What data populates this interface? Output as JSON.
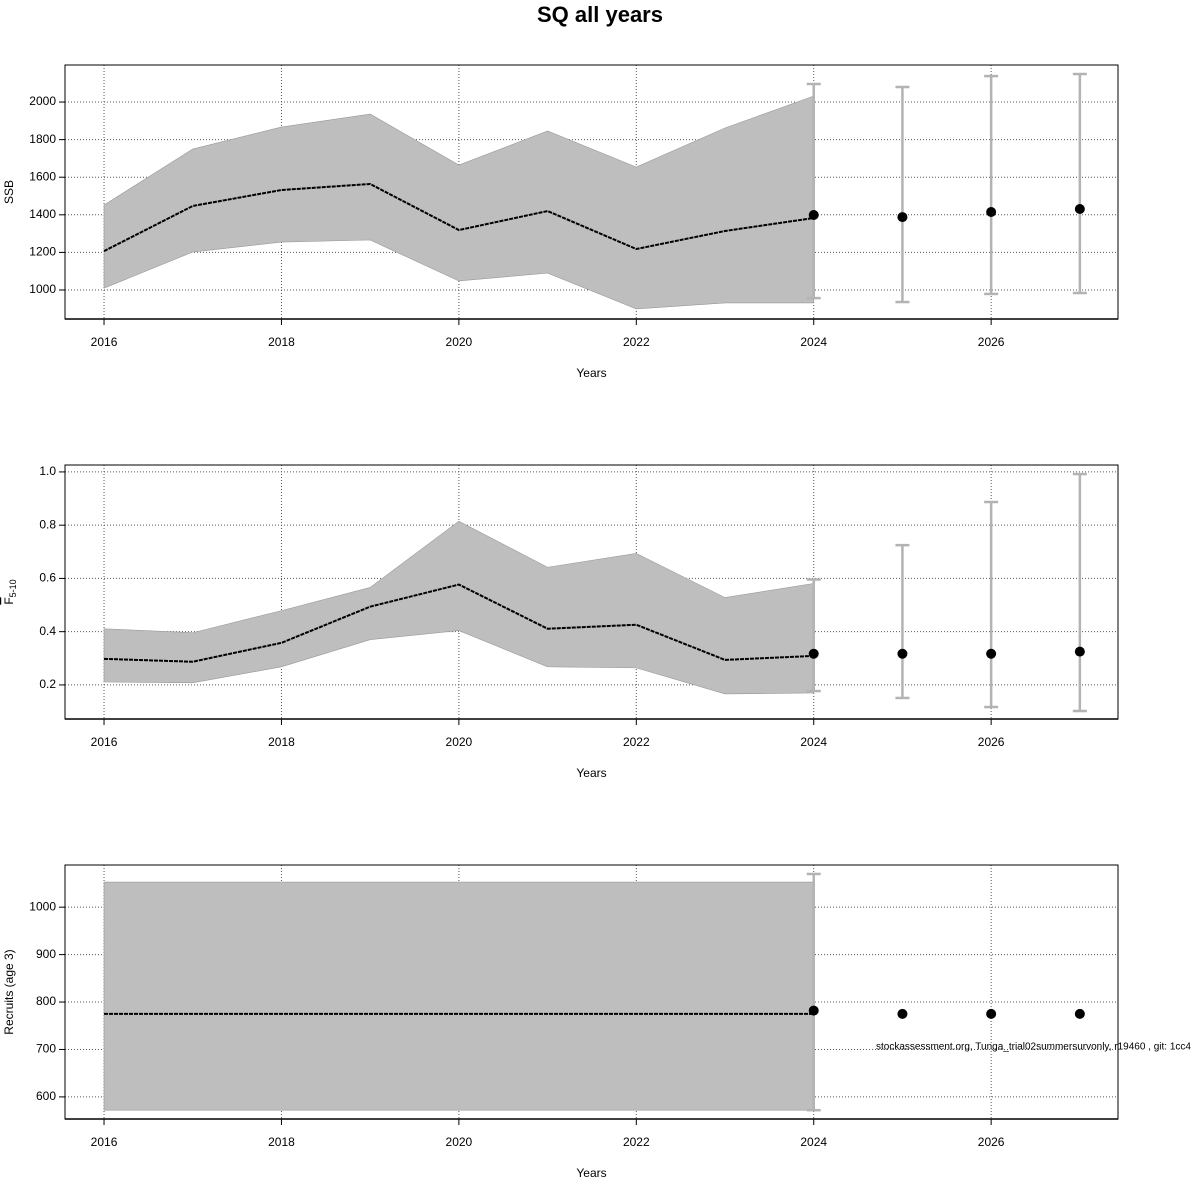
{
  "title": "SQ all years",
  "chart_data": [
    {
      "type": "line",
      "xlabel": "Years",
      "ylabel": "SSB",
      "x": [
        2016,
        2017,
        2018,
        2019,
        2020,
        2021,
        2022,
        2023,
        2024
      ],
      "values": [
        1207,
        1447,
        1532,
        1564,
        1319,
        1420,
        1218,
        1314,
        1383
      ],
      "upper": [
        1452,
        1750,
        1867,
        1936,
        1665,
        1846,
        1654,
        1862,
        2032
      ],
      "lower": [
        1010,
        1202,
        1255,
        1266,
        1048,
        1090,
        899,
        931,
        931
      ],
      "points_x": [
        2024,
        2025,
        2026,
        2027
      ],
      "points": [
        1399,
        1388,
        1415,
        1431
      ],
      "points_lower": [
        957,
        936,
        979,
        984
      ],
      "points_upper": [
        2096,
        2080,
        2138,
        2149
      ],
      "color": "#000000",
      "band_color": "#bebebe",
      "errorbar_color": "#b3b3b3",
      "xlim": [
        2015.56,
        2027.43
      ],
      "ylim": [
        845.7,
        2197
      ],
      "xticks": [
        2016,
        2018,
        2020,
        2022,
        2024,
        2026
      ],
      "yticks": [
        1000,
        1200,
        1400,
        1600,
        1800,
        2000
      ],
      "grid": true
    },
    {
      "type": "line",
      "xlabel": "Years",
      "ylabel": "F",
      "ylabel_sub": "5-10",
      "x": [
        2016,
        2017,
        2018,
        2019,
        2020,
        2021,
        2022,
        2023,
        2024
      ],
      "values": [
        0.298,
        0.287,
        0.358,
        0.494,
        0.577,
        0.411,
        0.426,
        0.294,
        0.309
      ],
      "upper": [
        0.411,
        0.396,
        0.479,
        0.566,
        0.815,
        0.642,
        0.694,
        0.528,
        0.581
      ],
      "lower": [
        0.211,
        0.208,
        0.268,
        0.37,
        0.404,
        0.268,
        0.264,
        0.166,
        0.17
      ],
      "points_x": [
        2024,
        2025,
        2026,
        2027
      ],
      "points": [
        0.317,
        0.317,
        0.317,
        0.325
      ],
      "points_lower": [
        0.177,
        0.151,
        0.117,
        0.102
      ],
      "points_upper": [
        0.596,
        0.725,
        0.887,
        0.992
      ],
      "color": "#000000",
      "band_color": "#bebebe",
      "errorbar_color": "#b3b3b3",
      "xlim": [
        2015.56,
        2027.43
      ],
      "ylim": [
        0.072,
        1.026
      ],
      "xticks": [
        2016,
        2018,
        2020,
        2022,
        2024,
        2026
      ],
      "yticks": [
        {
          "value": 0.2,
          "label": "0.2"
        },
        {
          "value": 0.4,
          "label": "0.4"
        },
        {
          "value": 0.6,
          "label": "0.6"
        },
        {
          "value": 0.8,
          "label": "0.8"
        },
        {
          "value": 1.0,
          "label": "1.0"
        }
      ],
      "grid": true
    },
    {
      "type": "line",
      "xlabel": "Years",
      "ylabel": "Recruits (age 3)",
      "x": [
        2016,
        2017,
        2018,
        2019,
        2020,
        2021,
        2022,
        2023,
        2024
      ],
      "values": [
        775,
        775,
        775,
        775,
        775,
        775,
        775,
        775,
        775
      ],
      "upper": [
        1053,
        1053,
        1053,
        1053,
        1053,
        1053,
        1053,
        1053,
        1053
      ],
      "lower": [
        572,
        572,
        572,
        572,
        572,
        572,
        572,
        572,
        572
      ],
      "points_x": [
        2024,
        2025,
        2026,
        2027
      ],
      "points": [
        782,
        775,
        775,
        775
      ],
      "points_lower": [
        572,
        null,
        null,
        null
      ],
      "points_upper": [
        1070,
        null,
        null,
        null
      ],
      "color": "#000000",
      "band_color": "#bebebe",
      "errorbar_color": "#b3b3b3",
      "xlim": [
        2015.56,
        2027.43
      ],
      "ylim": [
        553.4,
        1088.9
      ],
      "xticks": [
        2016,
        2018,
        2020,
        2022,
        2024,
        2026
      ],
      "yticks": [
        600,
        700,
        800,
        900,
        1000
      ],
      "grid": true,
      "annotation": "stockassessment.org, Tunga_trial02summersurvonly, r19460 , git: 1cc4"
    }
  ]
}
